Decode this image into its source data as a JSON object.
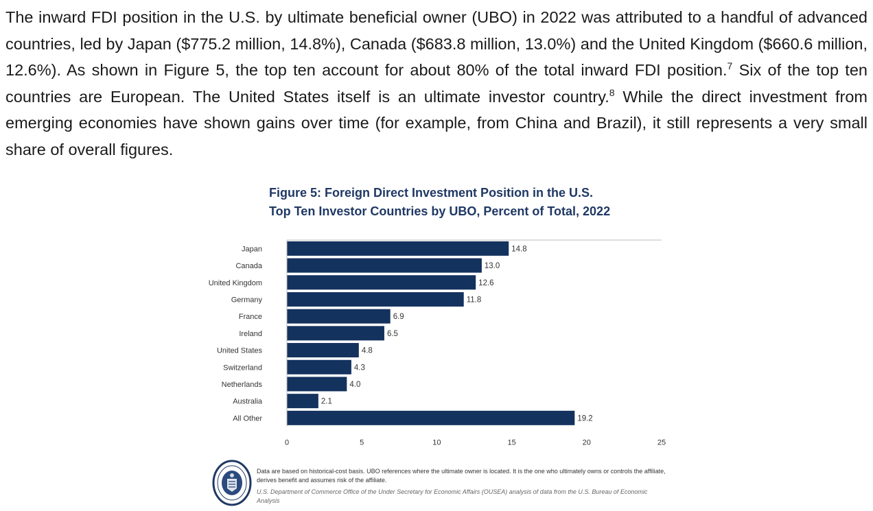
{
  "paragraph": {
    "part1": "The inward FDI position in the U.S. by ultimate beneficial owner (UBO) in 2022 was attributed to a handful of advanced countries, led by Japan ($775.2 million, 14.8%), Canada ($683.8 million, 13.0%) and the United Kingdom ($660.6 million, 12.6%). As shown in Figure 5, the top ten account for about 80% of the total inward FDI position.",
    "fn1": "7",
    "part2": " Six of the top ten countries are European. The United States itself is an ultimate investor country.",
    "fn2": "8",
    "part3": " While the direct investment from emerging economies have shown gains over time (for example, from China and Brazil), it still represents a very small share of overall figures."
  },
  "figure": {
    "title_line1": "Figure 5: Foreign Direct Investment Position in the U.S.",
    "title_line2": "Top Ten Investor Countries by UBO, Percent of Total, 2022",
    "note": "Data are based on historical-cost basis. UBO references where the ultimate owner is located. It is the one who ultimately owns or controls the affiliate, derives benefit and assumes risk of the affiliate.",
    "source": "U.S. Department of Commerce Office of the Under Secretary for Economic Affairs (OUSEA) analysis of data from the U.S. Bureau of Economic Analysis",
    "seal_icon": "department-of-commerce-seal-icon"
  },
  "chart_data": {
    "type": "bar",
    "orientation": "horizontal",
    "categories": [
      "Japan",
      "Canada",
      "United Kingdom",
      "Germany",
      "France",
      "Ireland",
      "United States",
      "Switzerland",
      "Netherlands",
      "Australia",
      "All Other"
    ],
    "values": [
      14.8,
      13.0,
      12.6,
      11.8,
      6.9,
      6.5,
      4.8,
      4.3,
      4.0,
      2.1,
      19.2
    ],
    "value_labels": [
      "14.8",
      "13.0",
      "12.6",
      "11.8",
      "6.9",
      "6.5",
      "4.8",
      "4.3",
      "4.0",
      "2.1",
      "19.2"
    ],
    "xticks": [
      0,
      5,
      10,
      15,
      20,
      25
    ],
    "xlim": [
      0,
      25
    ],
    "bar_color": "#14325e",
    "grid": false
  }
}
